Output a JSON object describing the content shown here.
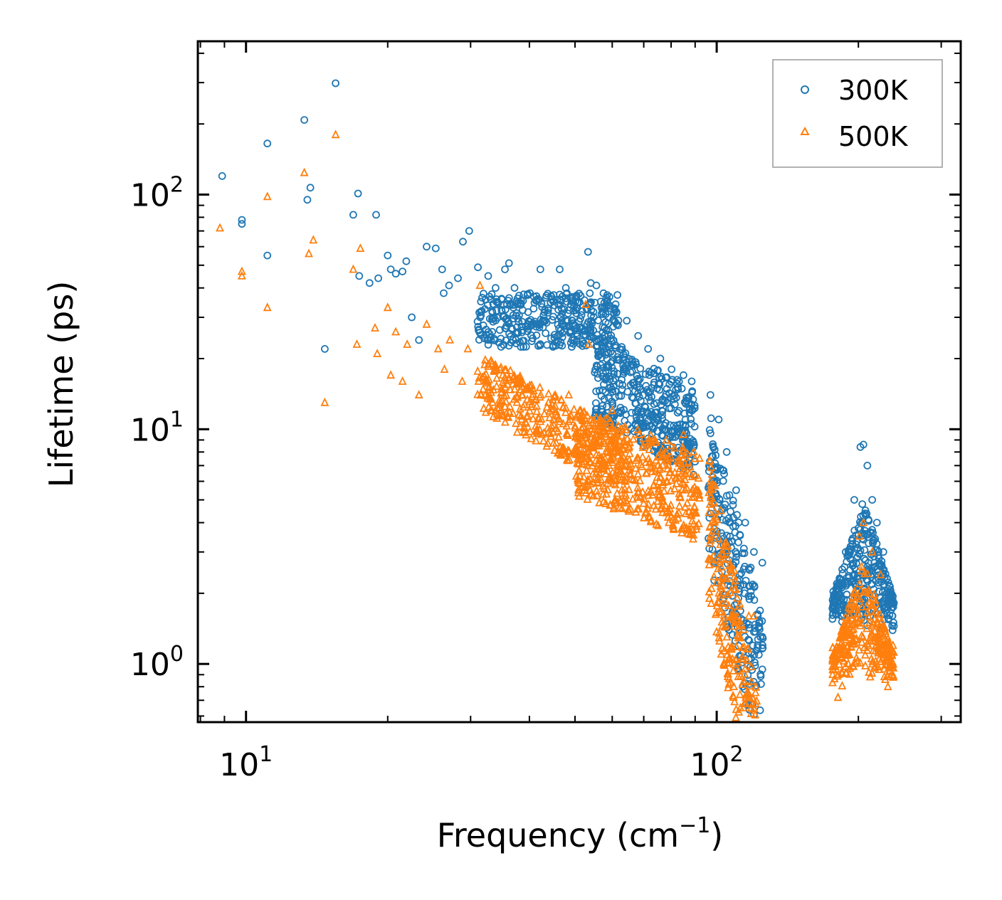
{
  "chart_data": {
    "type": "scatter",
    "title": "",
    "xlabel": "Frequency (cm",
    "xlabel_sup": "−1",
    "xlabel_end": ")",
    "ylabel": "Lifetime (ps)",
    "xscale": "log",
    "yscale": "log",
    "xlim": [
      7.9,
      330
    ],
    "ylim": [
      0.565,
      450
    ],
    "x_ticks": [
      {
        "value": 10,
        "base": "10",
        "exp": "1"
      },
      {
        "value": 100,
        "base": "10",
        "exp": "2"
      }
    ],
    "y_ticks": [
      {
        "value": 1,
        "base": "10",
        "exp": "0"
      },
      {
        "value": 10,
        "base": "10",
        "exp": "1"
      },
      {
        "value": 100,
        "base": "10",
        "exp": "2"
      }
    ],
    "legend": {
      "position": "top-right"
    },
    "series": [
      {
        "name": "300K",
        "marker": "circle",
        "color": "#1f77b4",
        "points": [
          [
            8.9,
            120
          ],
          [
            9.8,
            78
          ],
          [
            9.8,
            75
          ],
          [
            11.1,
            165
          ],
          [
            11.1,
            55
          ],
          [
            13.3,
            208
          ],
          [
            13.5,
            95
          ],
          [
            13.7,
            107
          ],
          [
            14.7,
            22
          ],
          [
            15.5,
            298
          ],
          [
            16.9,
            82
          ],
          [
            17.3,
            101
          ],
          [
            17.4,
            45
          ],
          [
            18.3,
            42
          ],
          [
            18.9,
            82
          ],
          [
            19.1,
            44
          ],
          [
            20.0,
            55
          ],
          [
            20.3,
            48
          ],
          [
            20.8,
            46
          ],
          [
            21.5,
            47
          ],
          [
            21.9,
            52
          ],
          [
            22.5,
            30
          ],
          [
            23.3,
            24
          ],
          [
            24.2,
            60
          ],
          [
            25.3,
            59
          ],
          [
            26.1,
            48
          ],
          [
            26.3,
            38
          ],
          [
            27.0,
            41
          ],
          [
            28.2,
            44
          ],
          [
            28.9,
            63
          ],
          [
            29.8,
            70
          ],
          [
            31.1,
            49
          ],
          [
            32.7,
            45
          ],
          [
            33.9,
            40
          ],
          [
            35.5,
            48
          ],
          [
            36.2,
            51
          ],
          [
            37.2,
            40
          ],
          [
            40.1,
            38
          ],
          [
            42.2,
            48
          ],
          [
            44.5,
            37
          ],
          [
            46.4,
            48
          ],
          [
            47.8,
            40
          ],
          [
            50.4,
            37
          ],
          [
            53.3,
            57
          ],
          [
            54.0,
            42
          ],
          [
            55.5,
            41
          ],
          [
            56.9,
            31
          ],
          [
            59.0,
            30
          ],
          [
            61.3,
            28
          ],
          [
            64.4,
            29
          ],
          [
            68.1,
            25
          ],
          [
            71.5,
            22
          ],
          [
            75.9,
            20
          ],
          [
            80.2,
            18
          ],
          [
            85.0,
            17
          ],
          [
            88.5,
            16
          ],
          [
            97.0,
            14
          ],
          [
            101.0,
            11
          ],
          [
            105.0,
            8
          ],
          [
            110.0,
            5.5
          ],
          [
            115.0,
            4
          ],
          [
            120.0,
            3
          ],
          [
            125.0,
            2.7
          ],
          [
            180.0,
            2.2
          ],
          [
            188.0,
            3
          ],
          [
            196.0,
            5
          ],
          [
            202.0,
            8.4
          ],
          [
            205.0,
            8.6
          ],
          [
            209.0,
            7
          ],
          [
            214.0,
            5
          ],
          [
            219.0,
            4
          ],
          [
            226.0,
            3
          ],
          [
            232.0,
            2
          ]
        ],
        "bands": [
          {
            "x0": 31,
            "x1": 62,
            "ylog0": 1.35,
            "ylog1": 1.58,
            "n": 380,
            "slope": 0
          },
          {
            "x0": 55,
            "x1": 90,
            "ylog0": 1.05,
            "ylog1": 1.42,
            "n": 420,
            "slope": -0.25
          },
          {
            "x0": 96,
            "x1": 126,
            "ylog0": 0.45,
            "ylog1": 1.1,
            "n": 260,
            "slope": -0.9
          },
          {
            "x0": 176,
            "x1": 238,
            "ylog0": 0.12,
            "ylog1": 0.7,
            "n": 320,
            "peak": 205,
            "peakwidth": 0.06
          }
        ]
      },
      {
        "name": "500K",
        "marker": "triangle",
        "color": "#ff7f0e",
        "points": [
          [
            8.8,
            72
          ],
          [
            9.8,
            47
          ],
          [
            9.8,
            45
          ],
          [
            11.1,
            98
          ],
          [
            11.1,
            33
          ],
          [
            13.3,
            124
          ],
          [
            13.6,
            56
          ],
          [
            13.9,
            64
          ],
          [
            14.7,
            13
          ],
          [
            15.5,
            180
          ],
          [
            16.9,
            48
          ],
          [
            17.2,
            23
          ],
          [
            17.5,
            59
          ],
          [
            18.8,
            27
          ],
          [
            19.0,
            21
          ],
          [
            20.0,
            33
          ],
          [
            20.3,
            17
          ],
          [
            20.8,
            26
          ],
          [
            21.5,
            16
          ],
          [
            22.0,
            23
          ],
          [
            23.3,
            14
          ],
          [
            24.2,
            28
          ],
          [
            25.6,
            22
          ],
          [
            26.4,
            18
          ],
          [
            27.1,
            24
          ],
          [
            28.8,
            16
          ],
          [
            29.6,
            22
          ],
          [
            31.2,
            16
          ],
          [
            31.4,
            41
          ],
          [
            33.3,
            19
          ],
          [
            35.1,
            17
          ],
          [
            38.0,
            16
          ],
          [
            42.3,
            14
          ],
          [
            45.0,
            11
          ],
          [
            47.0,
            8.3
          ],
          [
            48.5,
            14
          ],
          [
            50.5,
            9.6
          ],
          [
            52.7,
            34
          ],
          [
            53.5,
            23
          ],
          [
            56.5,
            11
          ],
          [
            60.0,
            12
          ],
          [
            64.0,
            7
          ],
          [
            68.0,
            5.4
          ],
          [
            70.5,
            4.4
          ],
          [
            75.0,
            7
          ],
          [
            80.0,
            8.5
          ],
          [
            85.0,
            9.5
          ],
          [
            90.0,
            7.5
          ],
          [
            97.0,
            6
          ],
          [
            102.0,
            4.5
          ],
          [
            105.0,
            3.2
          ],
          [
            109.0,
            2.5
          ],
          [
            112.0,
            1.8
          ],
          [
            114.0,
            1.4
          ],
          [
            117.0,
            1.6
          ],
          [
            120.0,
            1.6
          ],
          [
            181.0,
            0.72
          ],
          [
            190.0,
            1.1
          ],
          [
            196.0,
            2
          ],
          [
            201.0,
            3.5
          ],
          [
            205.0,
            4
          ],
          [
            211.0,
            2
          ],
          [
            214.0,
            3
          ],
          [
            218.0,
            1.2
          ],
          [
            223.0,
            2.4
          ],
          [
            231.0,
            0.8
          ],
          [
            234.0,
            1
          ]
        ],
        "bands": [
          {
            "x0": 31,
            "x1": 64,
            "ylog0": 1.08,
            "ylog1": 1.33,
            "n": 360,
            "slope": -0.35
          },
          {
            "x0": 50,
            "x1": 92,
            "ylog0": 0.72,
            "ylog1": 1.1,
            "n": 420,
            "slope": -0.2
          },
          {
            "x0": 96,
            "x1": 122,
            "ylog0": 0.3,
            "ylog1": 0.9,
            "n": 240,
            "slope": -1.0
          },
          {
            "x0": 176,
            "x1": 238,
            "ylog0": -0.1,
            "ylog1": 0.45,
            "n": 300,
            "peak": 205,
            "peakwidth": 0.07
          }
        ]
      }
    ]
  }
}
